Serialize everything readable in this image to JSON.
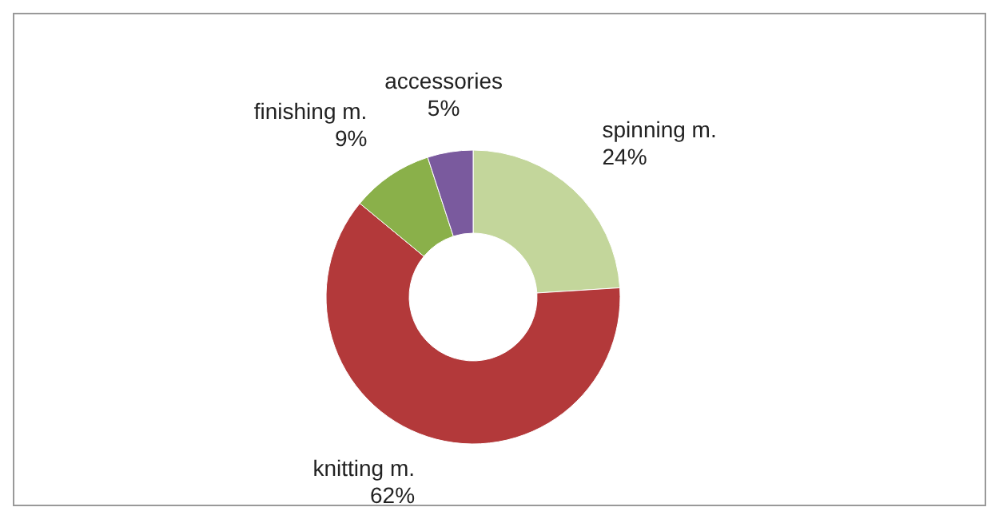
{
  "chart_data": {
    "type": "donut",
    "categories": [
      "spinning m.",
      "knitting m.",
      "finishing m.",
      "accessories"
    ],
    "values": [
      24,
      62,
      9,
      5
    ],
    "colors": [
      "#c3d69b",
      "#b3393a",
      "#8ab04a",
      "#7a5a9e"
    ],
    "value_labels": [
      "24%",
      "62%",
      "9%",
      "5%"
    ],
    "legend": false
  }
}
